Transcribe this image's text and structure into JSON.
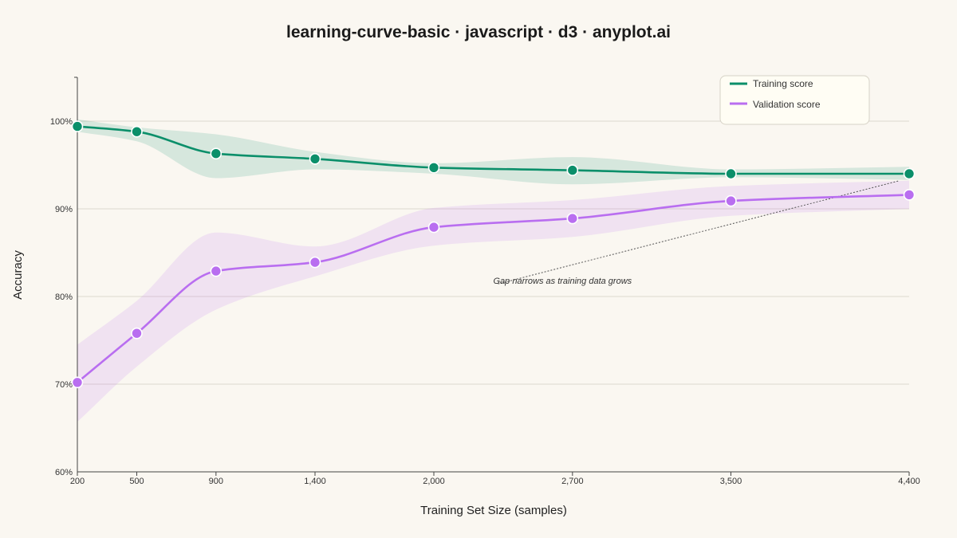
{
  "chart_data": {
    "type": "line",
    "title": "learning-curve-basic · javascript · d3 · anyplot.ai",
    "xlabel": "Training Set Size (samples)",
    "ylabel": "Accuracy",
    "x": [
      200,
      500,
      900,
      1400,
      2000,
      2700,
      3500,
      4400
    ],
    "x_tick_labels": [
      "200",
      "500",
      "900",
      "1,400",
      "2,000",
      "2,700",
      "3,500",
      "4,400"
    ],
    "ylim": [
      0.6,
      1.05
    ],
    "y_ticks": [
      0.6,
      0.7,
      0.8,
      0.9,
      1.0
    ],
    "y_tick_labels": [
      "60%",
      "70%",
      "80%",
      "90%",
      "100%"
    ],
    "grid": "horizontal",
    "legend_position": "top-right",
    "series": [
      {
        "name": "Training score",
        "color": "#0B8F6A",
        "band_color": "#0B8F6A",
        "values": [
          0.994,
          0.988,
          0.963,
          0.957,
          0.947,
          0.944,
          0.94,
          0.94
        ],
        "lower": [
          0.988,
          0.977,
          0.935,
          0.945,
          0.94,
          0.928,
          0.936,
          0.933
        ],
        "upper": [
          1.002,
          0.993,
          0.985,
          0.965,
          0.952,
          0.959,
          0.945,
          0.948
        ]
      },
      {
        "name": "Validation score",
        "color": "#B96EF0",
        "band_color": "#B96EF0",
        "values": [
          0.702,
          0.758,
          0.829,
          0.839,
          0.879,
          0.889,
          0.909,
          0.916
        ],
        "lower": [
          0.657,
          0.72,
          0.785,
          0.823,
          0.858,
          0.868,
          0.892,
          0.9
        ],
        "upper": [
          0.745,
          0.795,
          0.873,
          0.857,
          0.901,
          0.91,
          0.926,
          0.932
        ]
      }
    ],
    "annotation": {
      "text": "Gap narrows as training data grows",
      "x": 2300,
      "y": 0.818,
      "target_x": 4350,
      "target_y": 0.932
    }
  }
}
